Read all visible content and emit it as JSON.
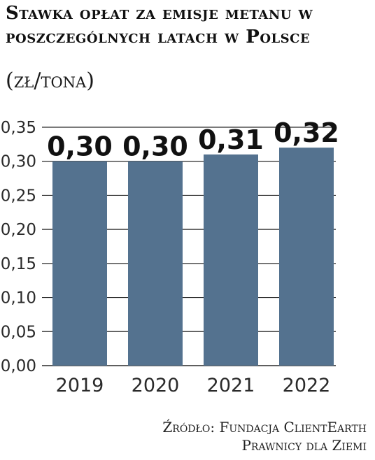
{
  "title": "Stawka opłat za emisje metanu w poszczególnych latach w Polsce",
  "subtitle": "(zł/tona)",
  "source": {
    "line1": "Źródło: Fundacja ClientEarth",
    "line2": "Prawnicy dla Ziemi"
  },
  "colors": {
    "bar": "#54728f",
    "grid": "#2a2a2a",
    "text": "#111111"
  },
  "chart_data": {
    "type": "bar",
    "categories": [
      "2019",
      "2020",
      "2021",
      "2022"
    ],
    "values": [
      0.3,
      0.3,
      0.31,
      0.32
    ],
    "data_labels": [
      "0,30",
      "0,30",
      "0,31",
      "0,32"
    ],
    "y_ticks": [
      {
        "value": 0.0,
        "label": "0,00"
      },
      {
        "value": 0.05,
        "label": "0,05"
      },
      {
        "value": 0.1,
        "label": "0,10"
      },
      {
        "value": 0.15,
        "label": "0,15"
      },
      {
        "value": 0.2,
        "label": "0,20"
      },
      {
        "value": 0.25,
        "label": "0,25"
      },
      {
        "value": 0.3,
        "label": "0,30"
      },
      {
        "value": 0.35,
        "label": "0,35"
      }
    ],
    "ylim": [
      0,
      0.35
    ],
    "grid": true,
    "legend": "none"
  }
}
